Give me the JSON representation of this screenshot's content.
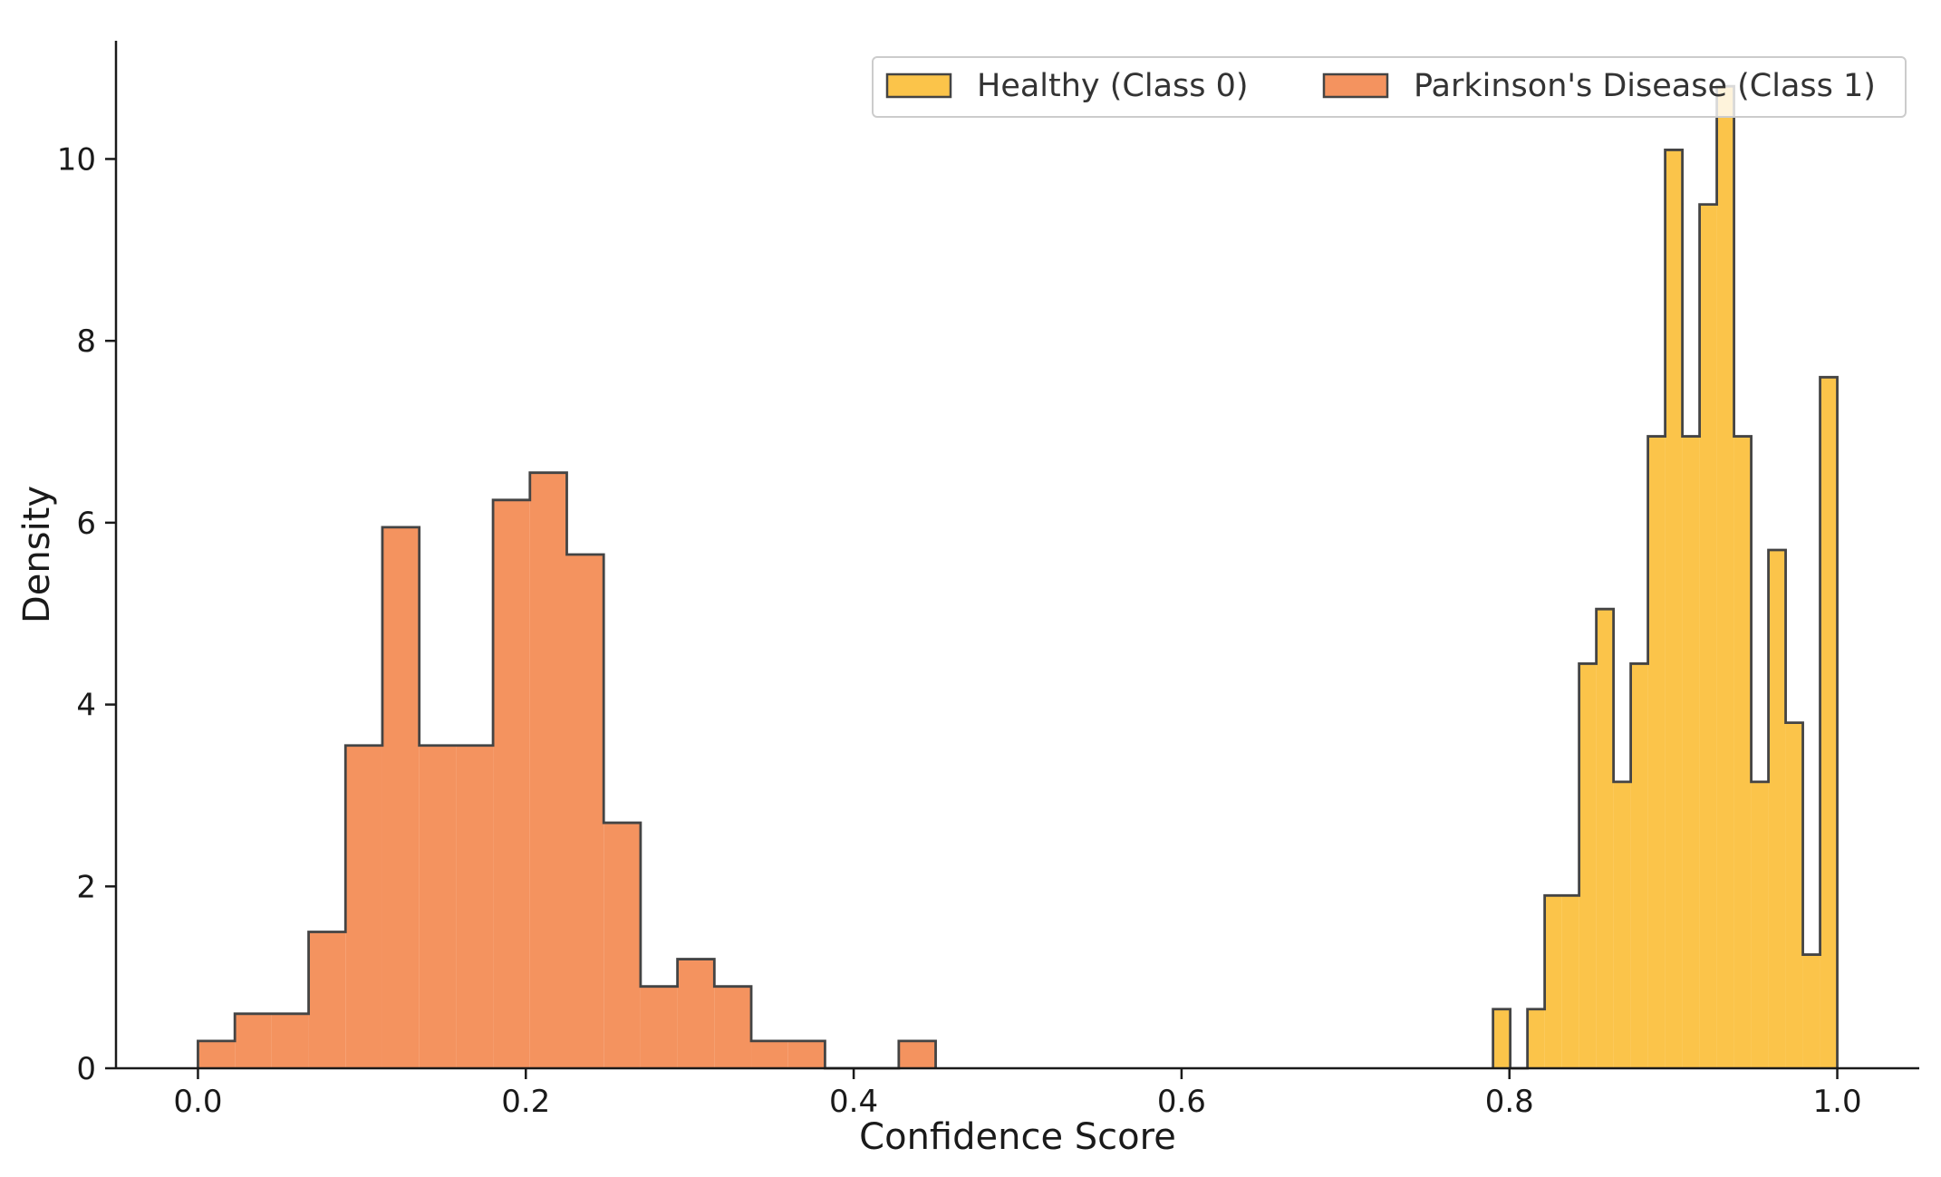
{
  "chart_data": {
    "type": "bar",
    "subtype": "histogram-step-filled",
    "title": "",
    "xlabel": "Confidence Score",
    "ylabel": "Density",
    "xlim": [
      -0.05,
      1.05
    ],
    "ylim": [
      0,
      11.3
    ],
    "xticks": [
      0.0,
      0.2,
      0.4,
      0.6,
      0.8,
      1.0
    ],
    "xtick_labels": [
      "0.0",
      "0.2",
      "0.4",
      "0.6",
      "0.8",
      "1.0"
    ],
    "yticks": [
      0,
      2,
      4,
      6,
      8,
      10
    ],
    "ytick_labels": [
      "0",
      "2",
      "4",
      "6",
      "8",
      "10"
    ],
    "grid": false,
    "legend_position": "top-right",
    "series": [
      {
        "name": "Parkinson's Disease (Class 1)",
        "color": "#F4935F",
        "edge_color": "#444444",
        "bin_edges": [
          0.0,
          0.0225,
          0.045,
          0.0675,
          0.09,
          0.1125,
          0.135,
          0.1575,
          0.18,
          0.2025,
          0.225,
          0.2475,
          0.27,
          0.2925,
          0.315,
          0.3375,
          0.36,
          0.3825,
          0.405,
          0.4275,
          0.45
        ],
        "density": [
          0.3,
          0.6,
          0.6,
          1.5,
          3.55,
          5.95,
          3.55,
          3.55,
          6.25,
          6.55,
          5.65,
          2.7,
          0.9,
          1.2,
          0.9,
          0.3,
          0.3,
          0.0,
          0.0,
          0.3
        ]
      },
      {
        "name": "Healthy (Class 0)",
        "color": "#FBC44A",
        "edge_color": "#444444",
        "bin_edges": [
          0.79,
          0.8005,
          0.811,
          0.8215,
          0.832,
          0.8425,
          0.853,
          0.8635,
          0.874,
          0.8845,
          0.895,
          0.9055,
          0.916,
          0.9265,
          0.937,
          0.9475,
          0.958,
          0.9685,
          0.979,
          0.9895,
          1.0
        ],
        "density": [
          0.65,
          0.0,
          0.65,
          1.9,
          1.9,
          4.45,
          5.05,
          3.15,
          4.45,
          6.95,
          10.1,
          6.95,
          9.5,
          10.8,
          6.95,
          3.15,
          5.7,
          3.8,
          1.25,
          7.6
        ]
      }
    ]
  }
}
